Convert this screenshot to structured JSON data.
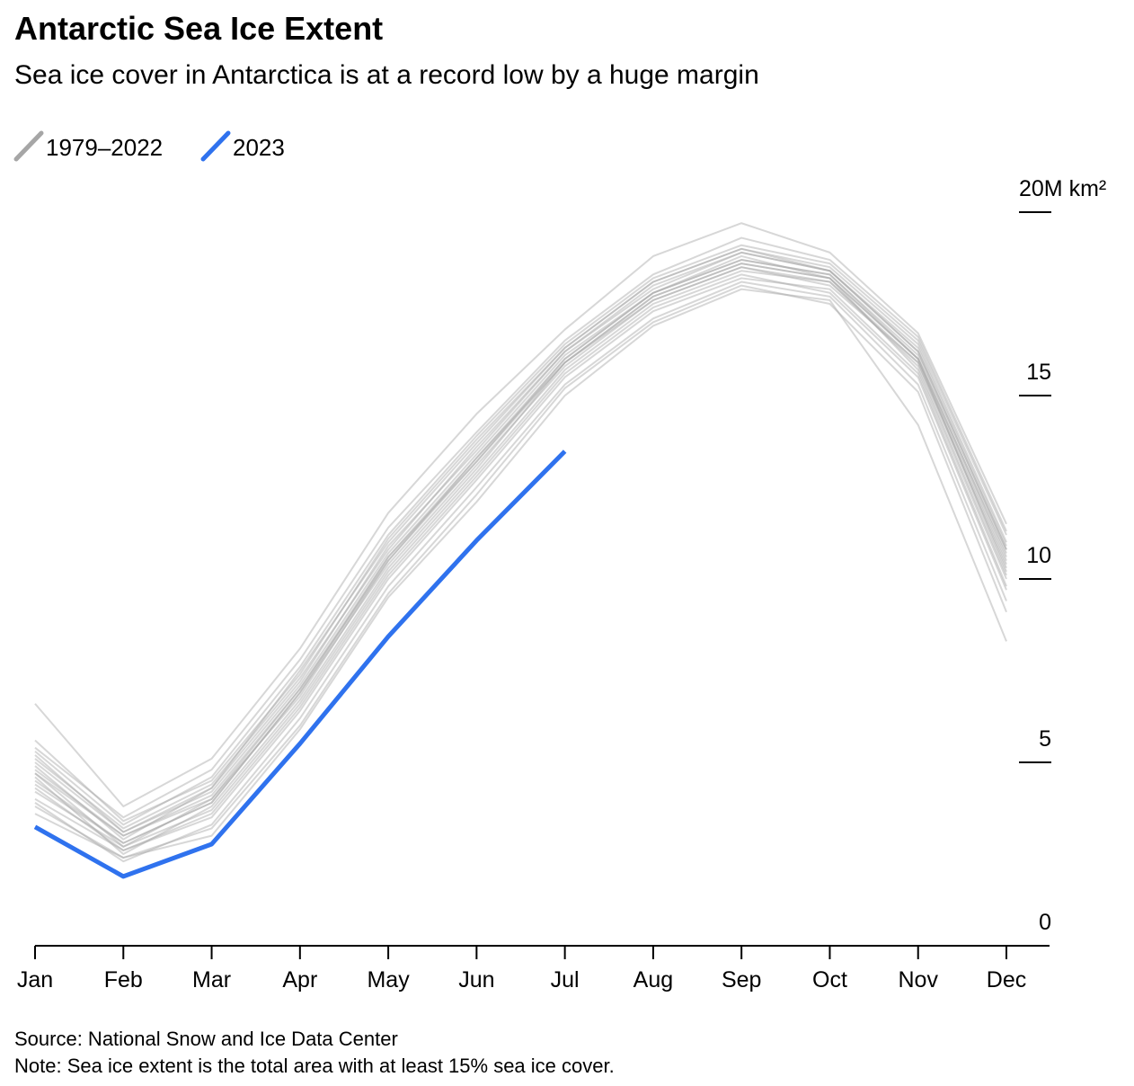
{
  "chart_data": {
    "type": "line",
    "title": "Antarctic Sea Ice Extent",
    "subtitle": "Sea ice cover in Antarctica is at a record low by a huge margin",
    "source": "Source: National Snow and Ice Data Center",
    "note": "Note: Sea ice extent is the total area with at least 15% sea ice cover.",
    "categories": [
      "Jan",
      "Feb",
      "Mar",
      "Apr",
      "May",
      "Jun",
      "Jul",
      "Aug",
      "Sep",
      "Oct",
      "Nov",
      "Dec"
    ],
    "ylim": [
      0,
      20
    ],
    "yticks": [
      0,
      5,
      10,
      15,
      {
        "value": 20,
        "label": "20M km²"
      }
    ],
    "series": [
      {
        "name": "1979–2022",
        "color": "#a6a6a6",
        "values": [
          [
            4.7,
            3.0,
            4.1,
            7.0,
            10.6,
            13.3,
            16.0,
            17.8,
            18.7,
            18.3,
            16.1,
            10.6
          ],
          [
            5.3,
            3.3,
            4.6,
            7.6,
            11.2,
            13.9,
            16.4,
            18.2,
            19.1,
            18.6,
            16.5,
            11.2
          ],
          [
            4.2,
            2.7,
            3.7,
            6.6,
            10.2,
            12.9,
            15.7,
            17.5,
            18.4,
            18.1,
            15.8,
            10.1
          ],
          [
            6.6,
            3.8,
            5.1,
            8.1,
            11.8,
            14.5,
            16.8,
            18.8,
            19.7,
            18.9,
            16.7,
            11.5
          ],
          [
            3.6,
            2.4,
            3.0,
            5.9,
            9.5,
            12.1,
            15.0,
            16.9,
            17.9,
            17.6,
            14.2,
            8.3
          ],
          [
            4.9,
            2.9,
            4.3,
            7.2,
            10.9,
            13.5,
            16.2,
            17.9,
            18.9,
            18.4,
            16.2,
            10.8
          ],
          [
            4.4,
            2.8,
            3.9,
            6.9,
            10.4,
            13.1,
            15.8,
            17.6,
            18.5,
            18.0,
            15.9,
            10.3
          ],
          [
            5.6,
            3.4,
            4.5,
            7.4,
            11.1,
            13.8,
            16.3,
            18.1,
            19.0,
            18.5,
            16.4,
            11.0
          ],
          [
            4.0,
            2.6,
            3.5,
            6.4,
            10.0,
            12.7,
            15.5,
            17.3,
            18.2,
            17.9,
            15.6,
            9.8
          ],
          [
            5.0,
            3.1,
            4.2,
            7.1,
            10.7,
            13.4,
            16.1,
            17.8,
            18.8,
            18.2,
            16.0,
            10.5
          ],
          [
            4.6,
            2.5,
            3.8,
            6.7,
            10.3,
            13.0,
            15.9,
            17.7,
            18.6,
            18.2,
            15.7,
            10.0
          ],
          [
            3.9,
            2.3,
            3.3,
            6.2,
            9.8,
            12.5,
            15.3,
            17.1,
            18.1,
            17.7,
            15.3,
            9.4
          ],
          [
            5.4,
            3.5,
            4.8,
            7.8,
            11.4,
            14.0,
            16.5,
            18.3,
            19.3,
            18.7,
            16.6,
            11.3
          ],
          [
            4.8,
            3.0,
            4.0,
            6.8,
            10.5,
            13.2,
            15.9,
            17.6,
            18.5,
            18.1,
            15.9,
            10.4
          ],
          [
            4.3,
            2.6,
            3.6,
            6.5,
            10.1,
            12.8,
            15.6,
            17.4,
            18.3,
            17.8,
            15.5,
            9.7
          ],
          [
            5.1,
            3.2,
            4.4,
            7.3,
            10.8,
            13.6,
            16.2,
            18.0,
            18.9,
            18.4,
            16.3,
            10.9
          ],
          [
            4.5,
            2.8,
            3.9,
            6.9,
            10.6,
            13.2,
            16.0,
            17.8,
            18.7,
            18.3,
            16.0,
            10.7
          ],
          [
            3.8,
            2.4,
            3.2,
            6.0,
            9.6,
            12.3,
            15.2,
            17.0,
            18.0,
            17.5,
            15.1,
            9.1
          ],
          [
            4.7,
            2.7,
            4.0,
            7.0,
            10.5,
            13.3,
            15.9,
            17.7,
            18.6,
            18.2,
            16.0,
            10.2
          ],
          [
            5.2,
            3.1,
            4.3,
            7.5,
            11.0,
            13.7,
            16.3,
            18.1,
            19.0,
            18.4,
            16.2,
            10.8
          ]
        ]
      },
      {
        "name": "2023",
        "color": "#2f72ee",
        "values": [
          3.24,
          1.89,
          2.77,
          5.51,
          8.43,
          11.05,
          13.48,
          null,
          null,
          null,
          null,
          null
        ]
      }
    ]
  }
}
